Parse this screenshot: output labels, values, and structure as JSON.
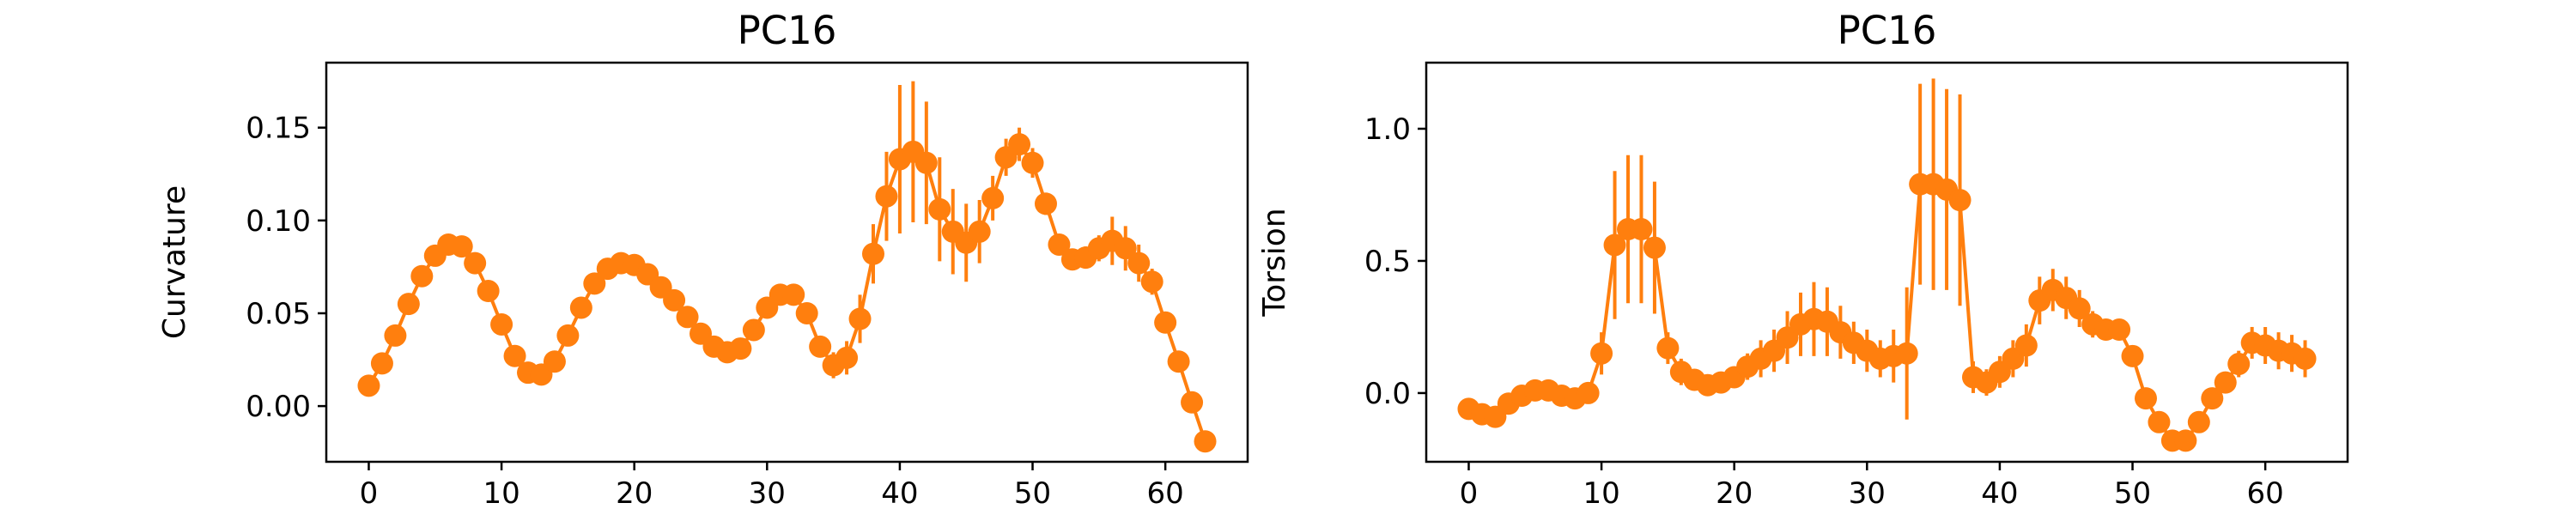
{
  "chart_data": [
    {
      "type": "line",
      "title": "PC16",
      "xlabel": "",
      "ylabel": "Curvature",
      "xlim": [
        -3.2,
        66.2
      ],
      "ylim": [
        -0.03,
        0.185
      ],
      "xticks": [
        "0",
        "10",
        "20",
        "30",
        "40",
        "50",
        "60"
      ],
      "yticks": [
        "0.00",
        "0.05",
        "0.10",
        "0.15"
      ],
      "grid": false,
      "color": "#ff7f0e",
      "series": [
        {
          "x": [
            0,
            1,
            2,
            3,
            4,
            5,
            6,
            7,
            8,
            9,
            10,
            11,
            12,
            13,
            14,
            15,
            16,
            17,
            18,
            19,
            20,
            21,
            22,
            23,
            24,
            25,
            26,
            27,
            28,
            29,
            30,
            31,
            32,
            33,
            34,
            35,
            36,
            37,
            38,
            39,
            40,
            41,
            42,
            43,
            44,
            45,
            46,
            47,
            48,
            49,
            50,
            51,
            52,
            53,
            54,
            55,
            56,
            57,
            58,
            59,
            60,
            61,
            62,
            63
          ],
          "y": [
            0.011,
            0.023,
            0.038,
            0.055,
            0.07,
            0.081,
            0.087,
            0.086,
            0.077,
            0.062,
            0.044,
            0.027,
            0.018,
            0.017,
            0.024,
            0.038,
            0.053,
            0.066,
            0.074,
            0.077,
            0.076,
            0.071,
            0.064,
            0.057,
            0.048,
            0.039,
            0.032,
            0.029,
            0.031,
            0.041,
            0.053,
            0.06,
            0.06,
            0.05,
            0.032,
            0.022,
            0.026,
            0.047,
            0.082,
            0.113,
            0.133,
            0.137,
            0.131,
            0.106,
            0.094,
            0.088,
            0.094,
            0.112,
            0.134,
            0.141,
            0.131,
            0.109,
            0.087,
            0.079,
            0.08,
            0.085,
            0.089,
            0.085,
            0.077,
            0.067,
            0.045,
            0.024,
            0.002,
            -0.019
          ],
          "err": [
            0.002,
            0.002,
            0.002,
            0.002,
            0.002,
            0.002,
            0.002,
            0.002,
            0.002,
            0.002,
            0.002,
            0.002,
            0.002,
            0.002,
            0.002,
            0.002,
            0.002,
            0.002,
            0.002,
            0.002,
            0.002,
            0.002,
            0.002,
            0.002,
            0.002,
            0.002,
            0.002,
            0.002,
            0.002,
            0.002,
            0.002,
            0.002,
            0.002,
            0.002,
            0.005,
            0.007,
            0.009,
            0.013,
            0.016,
            0.024,
            0.04,
            0.038,
            0.033,
            0.028,
            0.023,
            0.021,
            0.017,
            0.012,
            0.01,
            0.009,
            0.008,
            0.006,
            0.005,
            0.005,
            0.006,
            0.007,
            0.013,
            0.012,
            0.01,
            0.007,
            0.005,
            0.003,
            0.002,
            0.002
          ]
        }
      ]
    },
    {
      "type": "line",
      "title": "PC16",
      "xlabel": "",
      "ylabel": "Torsion",
      "xlim": [
        -3.2,
        66.2
      ],
      "ylim": [
        -0.26,
        1.25
      ],
      "xticks": [
        "0",
        "10",
        "20",
        "30",
        "40",
        "50",
        "60"
      ],
      "yticks": [
        "0.0",
        "0.5",
        "1.0"
      ],
      "grid": false,
      "color": "#ff7f0e",
      "series": [
        {
          "x": [
            0,
            1,
            2,
            3,
            4,
            5,
            6,
            7,
            8,
            9,
            10,
            11,
            12,
            13,
            14,
            15,
            16,
            17,
            18,
            19,
            20,
            21,
            22,
            23,
            24,
            25,
            26,
            27,
            28,
            29,
            30,
            31,
            32,
            33,
            34,
            35,
            36,
            37,
            38,
            39,
            40,
            41,
            42,
            43,
            44,
            45,
            46,
            47,
            48,
            49,
            50,
            51,
            52,
            53,
            54,
            55,
            56,
            57,
            58,
            59,
            60,
            61,
            62,
            63
          ],
          "y": [
            -0.06,
            -0.08,
            -0.09,
            -0.04,
            -0.01,
            0.01,
            0.01,
            -0.01,
            -0.02,
            0.0,
            0.15,
            0.56,
            0.62,
            0.62,
            0.55,
            0.17,
            0.08,
            0.05,
            0.03,
            0.04,
            0.06,
            0.1,
            0.13,
            0.16,
            0.21,
            0.26,
            0.28,
            0.27,
            0.23,
            0.19,
            0.16,
            0.13,
            0.14,
            0.15,
            0.79,
            0.79,
            0.77,
            0.73,
            0.06,
            0.04,
            0.08,
            0.13,
            0.18,
            0.35,
            0.39,
            0.36,
            0.32,
            0.26,
            0.24,
            0.24,
            0.14,
            -0.02,
            -0.11,
            -0.18,
            -0.18,
            -0.11,
            -0.02,
            0.04,
            0.11,
            0.19,
            0.18,
            0.16,
            0.15,
            0.13
          ],
          "err": [
            0.02,
            0.02,
            0.02,
            0.03,
            0.03,
            0.03,
            0.03,
            0.03,
            0.03,
            0.04,
            0.08,
            0.28,
            0.28,
            0.28,
            0.25,
            0.06,
            0.05,
            0.03,
            0.03,
            0.03,
            0.04,
            0.05,
            0.07,
            0.08,
            0.1,
            0.12,
            0.14,
            0.13,
            0.1,
            0.08,
            0.08,
            0.07,
            0.1,
            0.25,
            0.38,
            0.4,
            0.38,
            0.4,
            0.06,
            0.05,
            0.06,
            0.07,
            0.08,
            0.09,
            0.08,
            0.08,
            0.07,
            0.05,
            0.04,
            0.03,
            0.03,
            0.03,
            0.04,
            0.03,
            0.03,
            0.04,
            0.04,
            0.04,
            0.05,
            0.06,
            0.07,
            0.07,
            0.07,
            0.07
          ]
        }
      ]
    }
  ]
}
